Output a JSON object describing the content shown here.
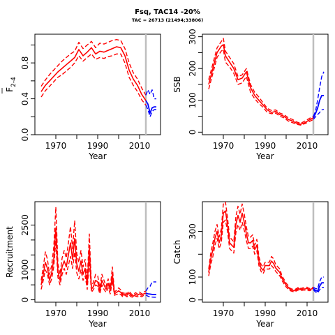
{
  "title": "Fsq, TAC14 -20%",
  "subtitle": "TAC = 26713 (21494;33806)",
  "colors": {
    "history": "#ff0000",
    "projection": "#0000ff",
    "marker": "#bebebe"
  },
  "chart_data": [
    {
      "type": "line",
      "id": "fbar",
      "xlabel": "Year",
      "ylabel": "F",
      "ylabel_sub": "2-4",
      "xlim": [
        1960,
        2020
      ],
      "ylim": [
        0,
        1.12
      ],
      "xticks": [
        1970,
        1990,
        2010
      ],
      "yticks": [
        0,
        0.4,
        0.8
      ],
      "yticklabels": [
        "0.0",
        "0.4",
        "0.8"
      ],
      "vline": 2013,
      "history": {
        "years": [
          1963,
          1965,
          1967,
          1969,
          1971,
          1973,
          1975,
          1977,
          1979,
          1981,
          1983,
          1985,
          1987,
          1989,
          1991,
          1993,
          1995,
          1997,
          1999,
          2001,
          2003,
          2005,
          2007,
          2009,
          2011,
          2013
        ],
        "median": [
          0.48,
          0.55,
          0.6,
          0.65,
          0.7,
          0.74,
          0.78,
          0.82,
          0.86,
          0.95,
          0.88,
          0.92,
          0.97,
          0.9,
          0.93,
          0.92,
          0.94,
          0.96,
          0.98,
          0.97,
          0.88,
          0.72,
          0.62,
          0.55,
          0.45,
          0.38
        ],
        "lower": [
          0.42,
          0.49,
          0.54,
          0.59,
          0.64,
          0.67,
          0.71,
          0.75,
          0.8,
          0.88,
          0.82,
          0.86,
          0.9,
          0.84,
          0.86,
          0.85,
          0.87,
          0.88,
          0.9,
          0.9,
          0.8,
          0.64,
          0.55,
          0.48,
          0.39,
          0.33
        ],
        "upper": [
          0.54,
          0.61,
          0.67,
          0.72,
          0.77,
          0.82,
          0.86,
          0.9,
          0.93,
          1.03,
          0.96,
          1.0,
          1.04,
          0.97,
          1.02,
          1.01,
          1.03,
          1.05,
          1.06,
          1.05,
          0.96,
          0.8,
          0.69,
          0.62,
          0.52,
          0.44
        ]
      },
      "projection": {
        "years": [
          2013,
          2014,
          2015,
          2016,
          2017,
          2018
        ],
        "median": [
          0.38,
          0.34,
          0.24,
          0.3,
          0.31,
          0.31
        ],
        "lower": [
          0.33,
          0.28,
          0.2,
          0.26,
          0.28,
          0.28
        ],
        "upper": [
          0.44,
          0.5,
          0.45,
          0.5,
          0.4,
          0.4
        ]
      }
    },
    {
      "type": "line",
      "id": "ssb",
      "xlabel": "Year",
      "ylabel": "SSB",
      "xlim": [
        1960,
        2020
      ],
      "ylim": [
        -8,
        308
      ],
      "xticks": [
        1970,
        1990,
        2010
      ],
      "yticks": [
        0,
        100,
        200,
        300
      ],
      "yticklabels": [
        "0",
        "100",
        "200",
        "300"
      ],
      "vline": 2013,
      "history": {
        "years": [
          1963,
          1965,
          1967,
          1969,
          1970,
          1971,
          1973,
          1975,
          1977,
          1979,
          1981,
          1983,
          1985,
          1987,
          1989,
          1991,
          1993,
          1995,
          1997,
          1999,
          2001,
          2003,
          2005,
          2007,
          2009,
          2011,
          2013
        ],
        "median": [
          150,
          200,
          250,
          270,
          275,
          240,
          220,
          200,
          165,
          170,
          190,
          140,
          115,
          100,
          85,
          70,
          62,
          65,
          55,
          50,
          40,
          35,
          28,
          25,
          30,
          38,
          45
        ],
        "lower": [
          135,
          185,
          235,
          255,
          260,
          220,
          205,
          185,
          150,
          155,
          175,
          125,
          105,
          90,
          78,
          62,
          58,
          60,
          50,
          45,
          35,
          30,
          25,
          22,
          27,
          33,
          40
        ],
        "upper": [
          165,
          215,
          265,
          285,
          295,
          255,
          235,
          215,
          175,
          180,
          200,
          150,
          125,
          110,
          92,
          75,
          68,
          70,
          60,
          55,
          45,
          40,
          32,
          28,
          35,
          43,
          50
        ]
      },
      "projection": {
        "years": [
          2013,
          2014,
          2015,
          2016,
          2017,
          2018
        ],
        "median": [
          45,
          58,
          75,
          100,
          115,
          115
        ],
        "lower": [
          40,
          48,
          55,
          62,
          70,
          72
        ],
        "upper": [
          50,
          65,
          100,
          140,
          175,
          190
        ]
      }
    },
    {
      "type": "line",
      "id": "recruitment",
      "xlabel": "Year",
      "ylabel": "Recruitment",
      "xlim": [
        1960,
        2020
      ],
      "ylim": [
        -80,
        3280
      ],
      "xticks": [
        1970,
        1990,
        2010
      ],
      "yticks": [
        0,
        1000,
        2500
      ],
      "minor_yticks": [
        500,
        1500,
        2000
      ],
      "yticklabels": [
        "0",
        "1000",
        "2500"
      ],
      "vline": 2013,
      "history": {
        "years": [
          1963,
          1964,
          1965,
          1966,
          1967,
          1968,
          1969,
          1970,
          1971,
          1972,
          1973,
          1974,
          1975,
          1976,
          1977,
          1978,
          1979,
          1980,
          1981,
          1982,
          1983,
          1984,
          1985,
          1986,
          1987,
          1988,
          1989,
          1990,
          1991,
          1992,
          1993,
          1994,
          1995,
          1996,
          1997,
          1998,
          1999,
          2000,
          2001,
          2002,
          2003,
          2004,
          2005,
          2006,
          2007,
          2008,
          2009,
          2010,
          2011,
          2012,
          2013
        ],
        "median": [
          500,
          850,
          1250,
          1050,
          650,
          900,
          1350,
          2400,
          950,
          650,
          1100,
          1300,
          1100,
          1500,
          1900,
          1350,
          2050,
          1200,
          950,
          1300,
          850,
          1050,
          500,
          1700,
          350,
          450,
          650,
          600,
          300,
          650,
          500,
          350,
          550,
          300,
          850,
          200,
          250,
          300,
          250,
          150,
          200,
          150,
          220,
          150,
          120,
          180,
          150,
          200,
          150,
          200,
          220
        ],
        "lower": [
          350,
          650,
          1000,
          850,
          500,
          700,
          1100,
          1950,
          750,
          500,
          850,
          1050,
          850,
          1150,
          1450,
          1050,
          1600,
          900,
          700,
          1000,
          650,
          800,
          350,
          1300,
          250,
          350,
          500,
          450,
          200,
          500,
          350,
          250,
          400,
          200,
          650,
          150,
          180,
          200,
          180,
          100,
          150,
          100,
          160,
          100,
          80,
          130,
          100,
          140,
          100,
          150,
          160
        ],
        "upper": [
          650,
          1100,
          1600,
          1350,
          850,
          1150,
          1750,
          3100,
          1200,
          850,
          1400,
          1650,
          1400,
          1900,
          2450,
          1700,
          2650,
          1550,
          1250,
          1650,
          1100,
          1350,
          650,
          2200,
          450,
          600,
          850,
          800,
          400,
          850,
          650,
          450,
          700,
          400,
          1100,
          260,
          320,
          400,
          330,
          200,
          270,
          200,
          290,
          200,
          160,
          240,
          200,
          260,
          200,
          260,
          290
        ]
      },
      "projection": {
        "years": [
          2013,
          2014,
          2015,
          2016,
          2017,
          2018
        ],
        "median": [
          220,
          200,
          190,
          180,
          180,
          180
        ],
        "lower": [
          160,
          120,
          100,
          90,
          85,
          85
        ],
        "upper": [
          290,
          400,
          450,
          600,
          600,
          600
        ]
      }
    },
    {
      "type": "line",
      "id": "catch",
      "xlabel": "Year",
      "ylabel": "Catch",
      "xlim": [
        1960,
        2020
      ],
      "ylim": [
        -10,
        430
      ],
      "xticks": [
        1970,
        1990,
        2010
      ],
      "yticks": [
        0,
        100,
        300
      ],
      "minor_yticks": [
        200
      ],
      "yticklabels": [
        "0",
        "100",
        "300"
      ],
      "vline": 2013,
      "history": {
        "years": [
          1963,
          1964,
          1965,
          1966,
          1967,
          1968,
          1969,
          1970,
          1971,
          1972,
          1973,
          1974,
          1975,
          1976,
          1977,
          1978,
          1979,
          1980,
          1981,
          1982,
          1983,
          1984,
          1985,
          1986,
          1987,
          1988,
          1989,
          1990,
          1991,
          1992,
          1993,
          1994,
          1995,
          1996,
          1997,
          1998,
          1999,
          2000,
          2001,
          2002,
          2003,
          2004,
          2005,
          2006,
          2007,
          2008,
          2009,
          2010,
          2011,
          2012,
          2013
        ],
        "median": [
          120,
          180,
          220,
          270,
          300,
          250,
          280,
          380,
          390,
          330,
          250,
          240,
          230,
          330,
          370,
          340,
          380,
          340,
          290,
          250,
          250,
          260,
          220,
          240,
          170,
          140,
          130,
          150,
          150,
          150,
          170,
          160,
          140,
          130,
          120,
          95,
          80,
          65,
          55,
          45,
          42,
          40,
          45,
          50,
          45,
          48,
          48,
          50,
          45,
          48,
          50
        ],
        "lower": [
          105,
          155,
          190,
          240,
          270,
          225,
          250,
          340,
          350,
          300,
          225,
          215,
          205,
          295,
          330,
          305,
          340,
          305,
          260,
          225,
          225,
          235,
          200,
          215,
          150,
          125,
          115,
          135,
          135,
          135,
          150,
          140,
          125,
          115,
          105,
          85,
          70,
          57,
          47,
          40,
          37,
          35,
          40,
          44,
          40,
          43,
          43,
          44,
          40,
          43,
          44
        ],
        "upper": [
          135,
          205,
          250,
          300,
          330,
          275,
          310,
          420,
          430,
          360,
          275,
          265,
          255,
          365,
          410,
          375,
          420,
          375,
          320,
          275,
          275,
          285,
          240,
          265,
          190,
          155,
          145,
          165,
          165,
          165,
          190,
          180,
          155,
          145,
          135,
          105,
          90,
          73,
          63,
          50,
          47,
          45,
          50,
          56,
          50,
          53,
          53,
          56,
          50,
          53,
          56
        ]
      },
      "projection": {
        "years": [
          2013,
          2014,
          2015,
          2016,
          2017,
          2018
        ],
        "median": [
          50,
          42,
          38,
          60,
          75,
          75
        ],
        "lower": [
          44,
          35,
          30,
          45,
          55,
          55
        ],
        "upper": [
          56,
          50,
          48,
          80,
          100,
          100
        ]
      }
    }
  ]
}
